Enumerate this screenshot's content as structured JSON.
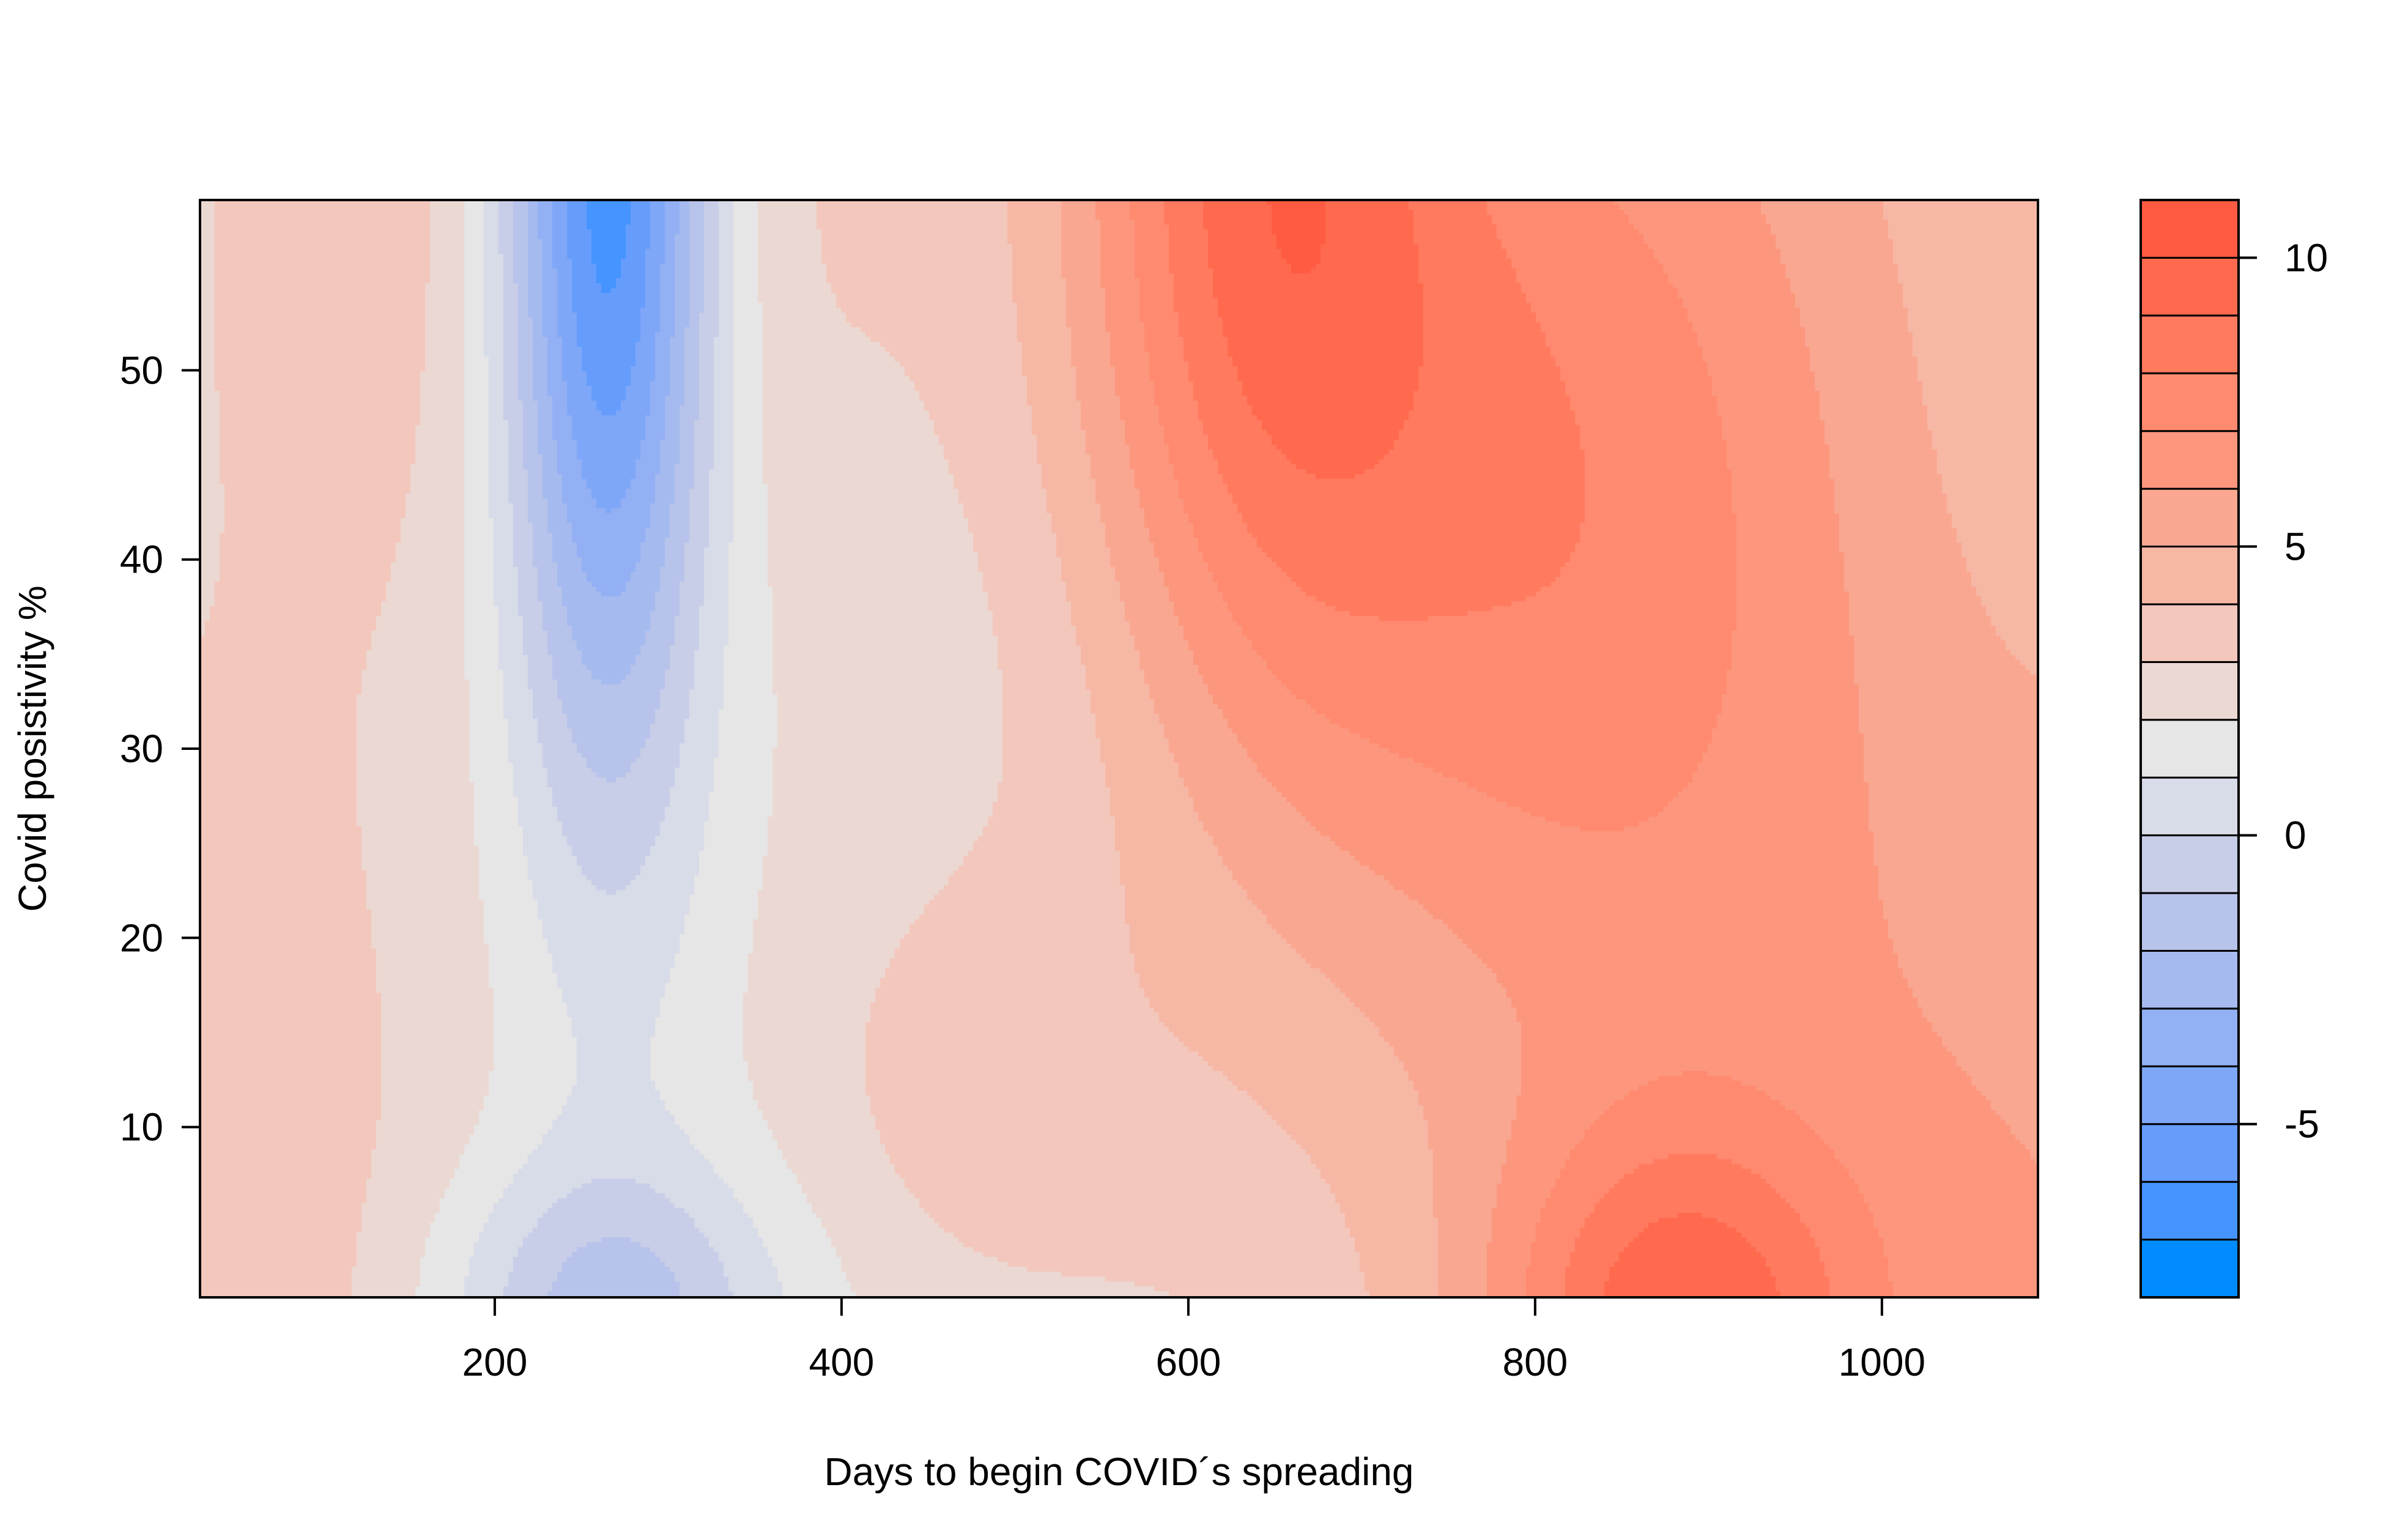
{
  "chart_data": {
    "type": "heatmap",
    "subtype": "filled-contour",
    "title": "",
    "xlabel": "Days to begin COVID´s spreading",
    "ylabel": "Covid posistivity %",
    "xlim": [
      30,
      1090
    ],
    "ylim": [
      1,
      59
    ],
    "x_ticks": [
      200,
      400,
      600,
      800,
      1000
    ],
    "x_tick_labels": [
      "200",
      "400",
      "600",
      "800",
      "1000"
    ],
    "y_ticks": [
      10,
      20,
      30,
      40,
      50
    ],
    "y_tick_labels": [
      "10",
      "20",
      "30",
      "40",
      "50"
    ],
    "grid": false,
    "legend": {
      "position": "right",
      "levels": [
        -8,
        -7,
        -6,
        -5,
        -4,
        -3,
        -2,
        -1,
        0,
        1,
        2,
        3,
        4,
        5,
        6,
        7,
        8,
        9,
        10,
        11
      ],
      "tick_values": [
        -5,
        0,
        5,
        10
      ],
      "tick_labels": [
        "-5",
        "0",
        "5",
        "10"
      ],
      "colors": [
        "#008cff",
        "#4594ff",
        "#669dfc",
        "#7fa7f8",
        "#93b0f4",
        "#a5baef",
        "#b7c3eb",
        "#c8cee8",
        "#d8dbe8",
        "#e6e6e6",
        "#ecd8d2",
        "#f3c7bc",
        "#f7b7a5",
        "#faa791",
        "#fc967d",
        "#ff8a6f",
        "#ff7a5f",
        "#ff6a4f",
        "#ff5a42"
      ]
    },
    "features": [
      {
        "type": "minimum",
        "x": 265,
        "y": 59,
        "value": -7.5
      },
      {
        "type": "maximum",
        "x": 660,
        "y": 59,
        "value": 10.5
      },
      {
        "type": "maximum",
        "x": 880,
        "y": 1,
        "value": 7.5
      },
      {
        "type": "local-minimum",
        "x": 265,
        "y": 1,
        "value": -0.5
      }
    ],
    "z_field": {
      "baseline": 1.5,
      "components": [
        {
          "amp": 2.3,
          "cx": 30,
          "cy": 1,
          "sx": 170,
          "sy": 36
        },
        {
          "amp": -3.4,
          "cx": 265,
          "cy": 0,
          "sx": 95,
          "sy": 8
        },
        {
          "amp": -10.2,
          "cx": 265,
          "cy": 62,
          "sx": 62,
          "sy": 32
        },
        {
          "amp": 2.2,
          "cx": 230,
          "cy": 62,
          "sx": 270,
          "sy": 30
        },
        {
          "amp": 6.3,
          "cx": 640,
          "cy": 64,
          "sx": 115,
          "sy": 34
        },
        {
          "amp": 3.7,
          "cx": 800,
          "cy": 45,
          "sx": 160,
          "sy": 32
        },
        {
          "amp": 4.8,
          "cx": 880,
          "cy": -1,
          "sx": 105,
          "sy": 11
        },
        {
          "amp": 4.7,
          "cx": 1090,
          "cy": 14,
          "sx": 380,
          "sy": 90
        },
        {
          "amp": 1.6,
          "cx": 480,
          "cy": 12,
          "sx": 125,
          "sy": 14
        },
        {
          "amp": -1.3,
          "cx": 1090,
          "cy": 46,
          "sx": 120,
          "sy": 30
        }
      ]
    }
  }
}
